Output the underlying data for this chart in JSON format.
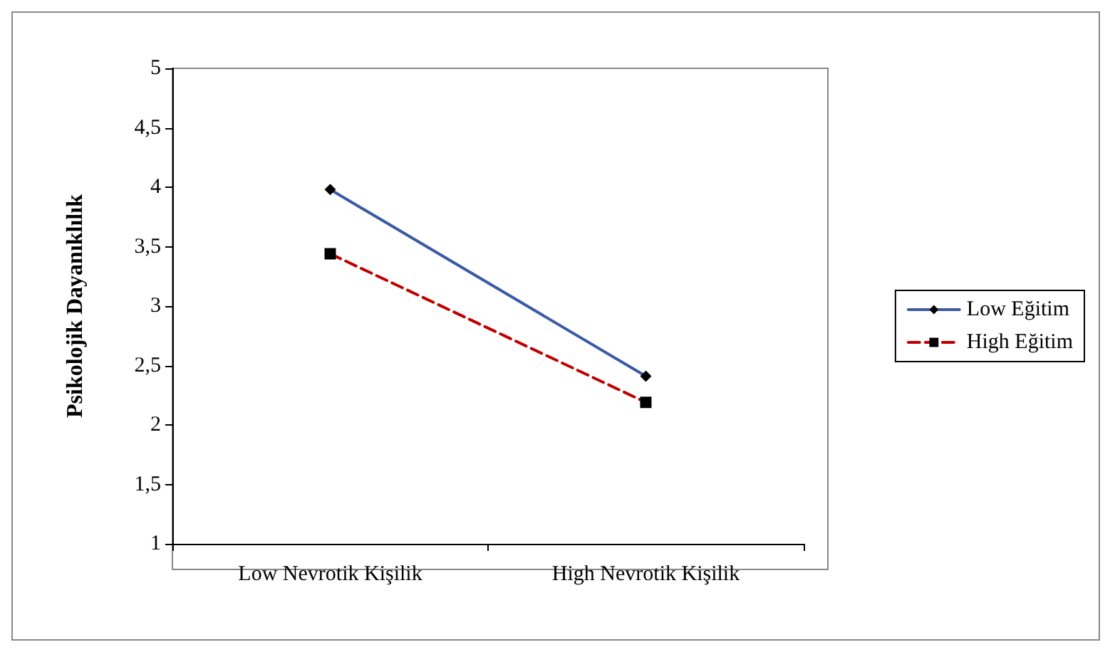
{
  "chart_data": {
    "type": "line",
    "ylabel": "Psikolojik Dayanıklılık",
    "categories": [
      "Low Nevrotik Kişilik",
      "High Nevrotik Kişilik"
    ],
    "series": [
      {
        "name": "Low Eğitim",
        "color": "#3b5ba5",
        "values": [
          3.98,
          2.41
        ],
        "marker": "diamond",
        "line_style": "solid"
      },
      {
        "name": "High Eğitim",
        "color": "#c00000",
        "values": [
          3.44,
          2.19
        ],
        "marker": "square",
        "line_style": "dashed"
      }
    ],
    "ylim": [
      1,
      5
    ],
    "yticks": [
      1,
      {
        "value": 1.5,
        "label": "1,5"
      },
      2,
      {
        "value": 2.5,
        "label": "2,5"
      },
      3,
      {
        "value": 3.5,
        "label": "3,5"
      },
      4,
      {
        "value": 4.5,
        "label": "4,5"
      },
      5
    ],
    "grid": false,
    "legend": "right"
  }
}
